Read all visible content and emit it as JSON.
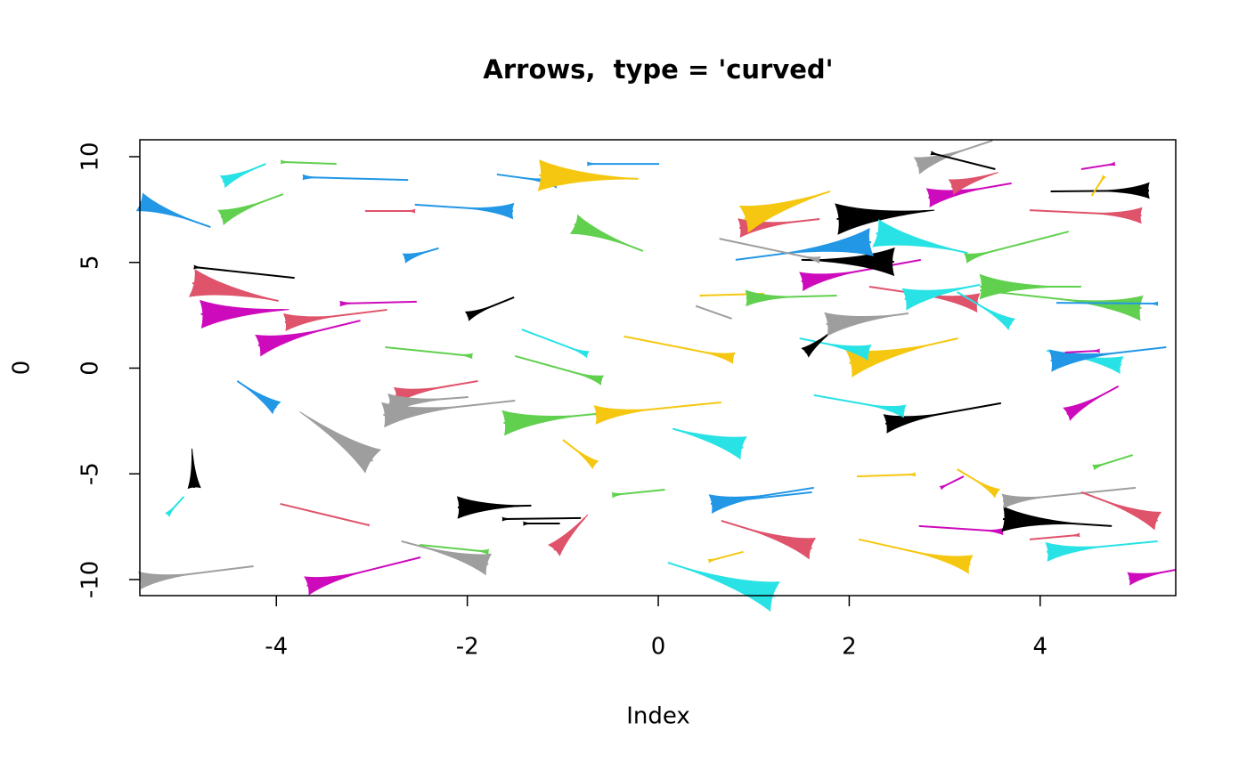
{
  "chart_data": {
    "type": "arrows",
    "title": "Arrows,  type = 'curved'",
    "x_label": "Index",
    "y_label": "0",
    "xlim": [
      -5.43,
      5.42
    ],
    "ylim": [
      -10.76,
      10.8
    ],
    "xticks": [
      -4,
      -2,
      0,
      2,
      4
    ],
    "yticks": [
      -10,
      -5,
      0,
      5,
      10
    ],
    "arrows": [
      {
        "x0": -4.69,
        "y0": 6.67,
        "x1": -5.43,
        "y1": 7.85,
        "head": 0.6,
        "color": "#2297E6"
      },
      {
        "x0": -4.11,
        "y0": 9.66,
        "x1": -4.56,
        "y1": 8.82,
        "head": 0.4,
        "color": "#28E2E5"
      },
      {
        "x0": -3.37,
        "y0": 9.66,
        "x1": -3.95,
        "y1": 9.75,
        "head": 0.1,
        "color": "#61D04F"
      },
      {
        "x0": -2.62,
        "y0": 8.9,
        "x1": -3.72,
        "y1": 9.03,
        "head": 0.15,
        "color": "#2297E6"
      },
      {
        "x0": -3.93,
        "y0": 8.23,
        "x1": -4.58,
        "y1": 7.13,
        "head": 0.5,
        "color": "#61D04F"
      },
      {
        "x0": -3.07,
        "y0": 7.43,
        "x1": -2.55,
        "y1": 7.43,
        "head": 0.1,
        "color": "#DF536B"
      },
      {
        "x0": -2.55,
        "y0": 7.73,
        "x1": -1.52,
        "y1": 7.43,
        "head": 0.5,
        "color": "#2297E6"
      },
      {
        "x0": -1.69,
        "y0": 9.16,
        "x1": -1.06,
        "y1": 8.78,
        "head": 0.35,
        "color": "#2297E6"
      },
      {
        "x0": -0.21,
        "y0": 8.95,
        "x1": -1.25,
        "y1": 9.12,
        "head": 1.0,
        "color": "#F5C710"
      },
      {
        "x0": 0.01,
        "y0": 9.66,
        "x1": -0.74,
        "y1": 9.66,
        "head": 0.1,
        "color": "#2297E6"
      },
      {
        "x0": -0.16,
        "y0": 5.54,
        "x1": -0.88,
        "y1": 6.8,
        "head": 0.65,
        "color": "#61D04F"
      },
      {
        "x0": -2.3,
        "y0": 5.67,
        "x1": -2.66,
        "y1": 5.2,
        "head": 0.3,
        "color": "#2297E6"
      },
      {
        "x0": -3.81,
        "y0": 4.27,
        "x1": -4.86,
        "y1": 4.78,
        "head": 0.1,
        "color": "#000000"
      },
      {
        "x0": -3.98,
        "y0": 3.18,
        "x1": -4.88,
        "y1": 4.02,
        "head": 0.9,
        "color": "#DF536B"
      },
      {
        "x0": -2.53,
        "y0": 3.14,
        "x1": -3.33,
        "y1": 3.05,
        "head": 0.15,
        "color": "#CD0BBC"
      },
      {
        "x0": -3.93,
        "y0": 2.76,
        "x1": -4.79,
        "y1": 2.55,
        "head": 0.9,
        "color": "#CD0BBC"
      },
      {
        "x0": -2.84,
        "y0": 2.76,
        "x1": -3.91,
        "y1": 2.17,
        "head": 0.55,
        "color": "#DF536B"
      },
      {
        "x0": -3.12,
        "y0": 2.25,
        "x1": -4.19,
        "y1": 1.07,
        "head": 0.7,
        "color": "#CD0BBC"
      },
      {
        "x0": -1.51,
        "y0": 3.35,
        "x1": -2.0,
        "y1": 2.46,
        "head": 0.3,
        "color": "#000000"
      },
      {
        "x0": -2.86,
        "y0": 0.99,
        "x1": -1.95,
        "y1": 0.57,
        "head": 0.15,
        "color": "#61D04F"
      },
      {
        "x0": -1.43,
        "y0": 1.83,
        "x1": -0.74,
        "y1": 0.65,
        "head": 0.2,
        "color": "#28E2E5"
      },
      {
        "x0": -1.5,
        "y0": 0.57,
        "x1": -0.59,
        "y1": -0.57,
        "head": 0.3,
        "color": "#61D04F"
      },
      {
        "x0": -0.36,
        "y0": 1.5,
        "x1": 0.79,
        "y1": 0.48,
        "head": 0.35,
        "color": "#F5C710"
      },
      {
        "x0": -4.41,
        "y0": -0.61,
        "x1": -4.0,
        "y1": -1.87,
        "head": 0.45,
        "color": "#2297E6"
      },
      {
        "x0": -1.89,
        "y0": -0.61,
        "x1": -2.75,
        "y1": -1.28,
        "head": 0.5,
        "color": "#DF536B"
      },
      {
        "x0": -1.99,
        "y0": -1.37,
        "x1": -2.82,
        "y1": -1.66,
        "head": 0.6,
        "color": "#9E9E9E"
      },
      {
        "x0": -1.5,
        "y0": -1.54,
        "x1": -2.88,
        "y1": -2.21,
        "head": 0.8,
        "color": "#9E9E9E"
      },
      {
        "x0": -3.57,
        "y0": -2.63,
        "x1": -2.99,
        "y1": -4.4,
        "head": 0.9,
        "color": "#9E9E9E"
      },
      {
        "x0": -0.46,
        "y0": -2.08,
        "x1": -1.62,
        "y1": -2.59,
        "head": 0.8,
        "color": "#61D04F"
      },
      {
        "x0": 0.66,
        "y0": -1.62,
        "x1": -0.66,
        "y1": -2.21,
        "head": 0.6,
        "color": "#F5C710"
      },
      {
        "x0": 0.16,
        "y0": -2.88,
        "x1": 0.89,
        "y1": -3.77,
        "head": 0.75,
        "color": "#28E2E5"
      },
      {
        "x0": -1.0,
        "y0": -3.39,
        "x1": -0.66,
        "y1": -4.57,
        "head": 0.3,
        "color": "#F5C710"
      },
      {
        "x0": -4.88,
        "y0": -4.15,
        "x1": -4.86,
        "y1": -5.66,
        "head": 0.4,
        "color": "#000000"
      },
      {
        "x0": -4.97,
        "y0": -6.08,
        "x1": -5.14,
        "y1": -6.93,
        "head": 0.15,
        "color": "#28E2E5"
      },
      {
        "x0": -1.33,
        "y0": -6.5,
        "x1": -2.1,
        "y1": -6.59,
        "head": 0.7,
        "color": "#000000"
      },
      {
        "x0": -0.81,
        "y0": -7.09,
        "x1": -1.63,
        "y1": -7.14,
        "head": 0.1,
        "color": "#000000"
      },
      {
        "x0": -1.03,
        "y0": -7.35,
        "x1": -1.41,
        "y1": -7.35,
        "head": 0.1,
        "color": "#000000"
      },
      {
        "x0": 0.07,
        "y0": -5.75,
        "x1": -0.48,
        "y1": -6.0,
        "head": 0.15,
        "color": "#61D04F"
      },
      {
        "x0": -3.96,
        "y0": -6.42,
        "x1": -3.03,
        "y1": -7.43,
        "head": 0.05,
        "color": "#DF536B"
      },
      {
        "x0": -2.69,
        "y0": -8.19,
        "x1": -1.78,
        "y1": -9.28,
        "head": 0.7,
        "color": "#9E9E9E"
      },
      {
        "x0": -2.5,
        "y0": -8.36,
        "x1": -1.78,
        "y1": -8.69,
        "head": 0.15,
        "color": "#61D04F"
      },
      {
        "x0": -0.77,
        "y0": -7.09,
        "x1": -1.09,
        "y1": -8.61,
        "head": 0.5,
        "color": "#DF536B"
      },
      {
        "x0": -2.49,
        "y0": -8.95,
        "x1": -3.68,
        "y1": -10.29,
        "head": 0.6,
        "color": "#CD0BBC"
      },
      {
        "x0": -4.24,
        "y0": -9.37,
        "x1": -5.43,
        "y1": -10.04,
        "head": 0.55,
        "color": "#9E9E9E"
      },
      {
        "x0": 1.63,
        "y0": -5.66,
        "x1": 0.55,
        "y1": -6.42,
        "head": 0.6,
        "color": "#2297E6"
      },
      {
        "x0": 1.61,
        "y0": -5.87,
        "x1": 0.57,
        "y1": -6.38,
        "head": 0.1,
        "color": "#2297E6"
      },
      {
        "x0": 0.1,
        "y0": -9.2,
        "x1": 1.22,
        "y1": -10.8,
        "head": 1.0,
        "color": "#28E2E5"
      },
      {
        "x0": 0.89,
        "y0": -8.69,
        "x1": 0.53,
        "y1": -9.12,
        "head": 0.1,
        "color": "#F5C710"
      },
      {
        "x0": 0.66,
        "y0": -7.22,
        "x1": 1.61,
        "y1": -8.53,
        "head": 0.7,
        "color": "#DF536B"
      },
      {
        "x0": 2.1,
        "y0": -8.1,
        "x1": 3.27,
        "y1": -9.28,
        "head": 0.6,
        "color": "#F5C710"
      },
      {
        "x0": 2.08,
        "y0": -5.12,
        "x1": 2.69,
        "y1": -5.03,
        "head": 0.1,
        "color": "#F5C710"
      },
      {
        "x0": 3.13,
        "y0": -4.78,
        "x1": 3.55,
        "y1": -5.92,
        "head": 0.3,
        "color": "#F5C710"
      },
      {
        "x0": 3.2,
        "y0": -5.12,
        "x1": 2.96,
        "y1": -5.66,
        "head": 0.1,
        "color": "#CD0BBC"
      },
      {
        "x0": 2.73,
        "y0": -7.47,
        "x1": 3.61,
        "y1": -7.73,
        "head": 0.2,
        "color": "#CD0BBC"
      },
      {
        "x0": 4.75,
        "y0": -7.47,
        "x1": 3.61,
        "y1": -7.14,
        "head": 0.8,
        "color": "#000000"
      },
      {
        "x0": 5.0,
        "y0": -5.66,
        "x1": 3.61,
        "y1": -6.29,
        "head": 0.45,
        "color": "#9E9E9E"
      },
      {
        "x0": 4.43,
        "y0": -5.87,
        "x1": 5.23,
        "y1": -7.22,
        "head": 0.6,
        "color": "#DF536B"
      },
      {
        "x0": 4.97,
        "y0": -4.11,
        "x1": 4.56,
        "y1": -4.69,
        "head": 0.15,
        "color": "#61D04F"
      },
      {
        "x0": 3.89,
        "y0": -8.1,
        "x1": 4.41,
        "y1": -7.89,
        "head": 0.1,
        "color": "#DF536B"
      },
      {
        "x0": 5.23,
        "y0": -8.19,
        "x1": 4.07,
        "y1": -8.69,
        "head": 0.6,
        "color": "#28E2E5"
      },
      {
        "x0": 5.42,
        "y0": -9.54,
        "x1": 4.93,
        "y1": -9.96,
        "head": 0.4,
        "color": "#CD0BBC"
      },
      {
        "x0": 3.59,
        "y0": -1.66,
        "x1": 2.38,
        "y1": -2.63,
        "head": 0.6,
        "color": "#000000"
      },
      {
        "x0": 1.63,
        "y0": -1.28,
        "x1": 2.58,
        "y1": -2.04,
        "head": 0.4,
        "color": "#28E2E5"
      },
      {
        "x0": 4.82,
        "y0": -0.86,
        "x1": 4.28,
        "y1": -2.17,
        "head": 0.45,
        "color": "#CD0BBC"
      },
      {
        "x0": 4.07,
        "y0": 0.82,
        "x1": 4.85,
        "y1": 0.15,
        "head": 0.55,
        "color": "#28E2E5"
      },
      {
        "x0": 5.32,
        "y0": 0.99,
        "x1": 4.11,
        "y1": 0.36,
        "head": 0.7,
        "color": "#2297E6"
      },
      {
        "x0": 4.26,
        "y0": 0.74,
        "x1": 4.62,
        "y1": 0.82,
        "head": 0.1,
        "color": "#CD0BBC"
      },
      {
        "x0": 3.14,
        "y0": 1.41,
        "x1": 2.0,
        "y1": 0.23,
        "head": 0.9,
        "color": "#F5C710"
      },
      {
        "x0": 1.48,
        "y0": 1.41,
        "x1": 2.21,
        "y1": 0.74,
        "head": 0.5,
        "color": "#28E2E5"
      },
      {
        "x0": 1.87,
        "y0": 1.92,
        "x1": 1.54,
        "y1": 0.74,
        "head": 0.35,
        "color": "#000000"
      },
      {
        "x0": 2.62,
        "y0": 2.59,
        "x1": 1.76,
        "y1": 2.08,
        "head": 0.75,
        "color": "#9E9E9E"
      },
      {
        "x0": 0.77,
        "y0": 2.34,
        "x1": 0.4,
        "y1": 2.93,
        "head": 0.05,
        "color": "#9E9E9E"
      },
      {
        "x0": 1.11,
        "y0": 3.52,
        "x1": 0.44,
        "y1": 3.43,
        "head": 0.05,
        "color": "#F5C710"
      },
      {
        "x0": 1.87,
        "y0": 3.43,
        "x1": 0.92,
        "y1": 3.31,
        "head": 0.5,
        "color": "#61D04F"
      },
      {
        "x0": 2.21,
        "y0": 3.85,
        "x1": 3.35,
        "y1": 3.09,
        "head": 0.6,
        "color": "#DF536B"
      },
      {
        "x0": 3.37,
        "y0": 3.94,
        "x1": 2.58,
        "y1": 3.26,
        "head": 0.7,
        "color": "#28E2E5"
      },
      {
        "x0": 3.13,
        "y0": 3.6,
        "x1": 3.7,
        "y1": 2.08,
        "head": 0.4,
        "color": "#28E2E5"
      },
      {
        "x0": 4.43,
        "y0": 3.85,
        "x1": 3.37,
        "y1": 3.85,
        "head": 0.8,
        "color": "#61D04F"
      },
      {
        "x0": 3.37,
        "y0": 3.68,
        "x1": 5.06,
        "y1": 2.84,
        "head": 0.8,
        "color": "#61D04F"
      },
      {
        "x0": 4.17,
        "y0": 3.09,
        "x1": 5.23,
        "y1": 3.05,
        "head": 0.1,
        "color": "#2297E6"
      },
      {
        "x0": 2.75,
        "y0": 5.12,
        "x1": 1.5,
        "y1": 4.1,
        "head": 0.6,
        "color": "#CD0BBC"
      },
      {
        "x0": 1.5,
        "y0": 5.12,
        "x1": 2.47,
        "y1": 5.03,
        "head": 0.9,
        "color": "#000000"
      },
      {
        "x0": 0.81,
        "y0": 5.12,
        "x1": 2.23,
        "y1": 5.96,
        "head": 0.9,
        "color": "#2297E6"
      },
      {
        "x0": 0.64,
        "y0": 6.12,
        "x1": 1.69,
        "y1": 5.12,
        "head": 0.2,
        "color": "#9E9E9E"
      },
      {
        "x0": 1.69,
        "y0": 7.05,
        "x1": 0.85,
        "y1": 6.63,
        "head": 0.6,
        "color": "#DF536B"
      },
      {
        "x0": 1.8,
        "y0": 8.36,
        "x1": 0.9,
        "y1": 7.05,
        "head": 0.9,
        "color": "#F5C710"
      },
      {
        "x0": 2.8,
        "y0": 7.43,
        "x1": 1.87,
        "y1": 7.05,
        "head": 1.0,
        "color": "#000000"
      },
      {
        "x0": 3.24,
        "y0": 5.45,
        "x1": 2.28,
        "y1": 6.38,
        "head": 0.9,
        "color": "#28E2E5"
      },
      {
        "x0": 4.3,
        "y0": 6.46,
        "x1": 3.22,
        "y1": 5.2,
        "head": 0.3,
        "color": "#61D04F"
      },
      {
        "x0": 3.5,
        "y0": 10.76,
        "x1": 2.71,
        "y1": 9.58,
        "head": 0.55,
        "color": "#9E9E9E"
      },
      {
        "x0": 3.53,
        "y0": 9.41,
        "x1": 2.86,
        "y1": 10.17,
        "head": 0.1,
        "color": "#000000"
      },
      {
        "x0": 3.7,
        "y0": 8.74,
        "x1": 2.83,
        "y1": 8.06,
        "head": 0.6,
        "color": "#CD0BBC"
      },
      {
        "x0": 3.37,
        "y0": 8.99,
        "x1": 3.07,
        "y1": 8.57,
        "head": 0.5,
        "color": "#DF536B"
      },
      {
        "x0": 4.11,
        "y0": 8.36,
        "x1": 5.14,
        "y1": 8.4,
        "head": 0.5,
        "color": "#000000"
      },
      {
        "x0": 4.54,
        "y0": 8.15,
        "x1": 4.67,
        "y1": 9.07,
        "head": 0.1,
        "color": "#F5C710"
      },
      {
        "x0": 4.43,
        "y0": 9.41,
        "x1": 4.78,
        "y1": 9.66,
        "head": 0.1,
        "color": "#CD0BBC"
      },
      {
        "x0": 3.89,
        "y0": 7.47,
        "x1": 5.06,
        "y1": 7.22,
        "head": 0.5,
        "color": "#DF536B"
      }
    ]
  }
}
